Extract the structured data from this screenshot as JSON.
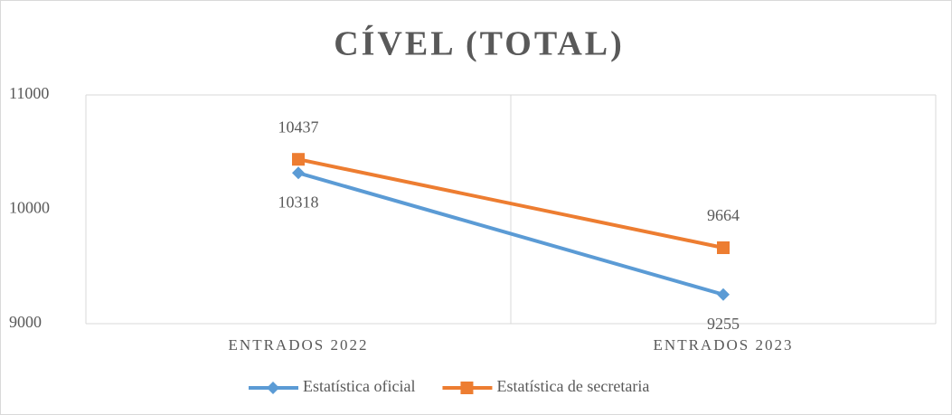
{
  "chart_data": {
    "type": "line",
    "title": "CÍVEL (TOTAL)",
    "categories": [
      "ENTRADOS 2022",
      "ENTRADOS 2023"
    ],
    "series": [
      {
        "name": "Estatística oficial",
        "color": "#5b9bd5",
        "values": [
          10318,
          9255
        ]
      },
      {
        "name": "Estatística de secretaria",
        "color": "#ed7d31",
        "values": [
          10437,
          9664
        ]
      }
    ],
    "ylim": [
      9000,
      11000
    ],
    "yticks": [
      9000,
      10000,
      11000
    ],
    "legend": "bottom"
  }
}
